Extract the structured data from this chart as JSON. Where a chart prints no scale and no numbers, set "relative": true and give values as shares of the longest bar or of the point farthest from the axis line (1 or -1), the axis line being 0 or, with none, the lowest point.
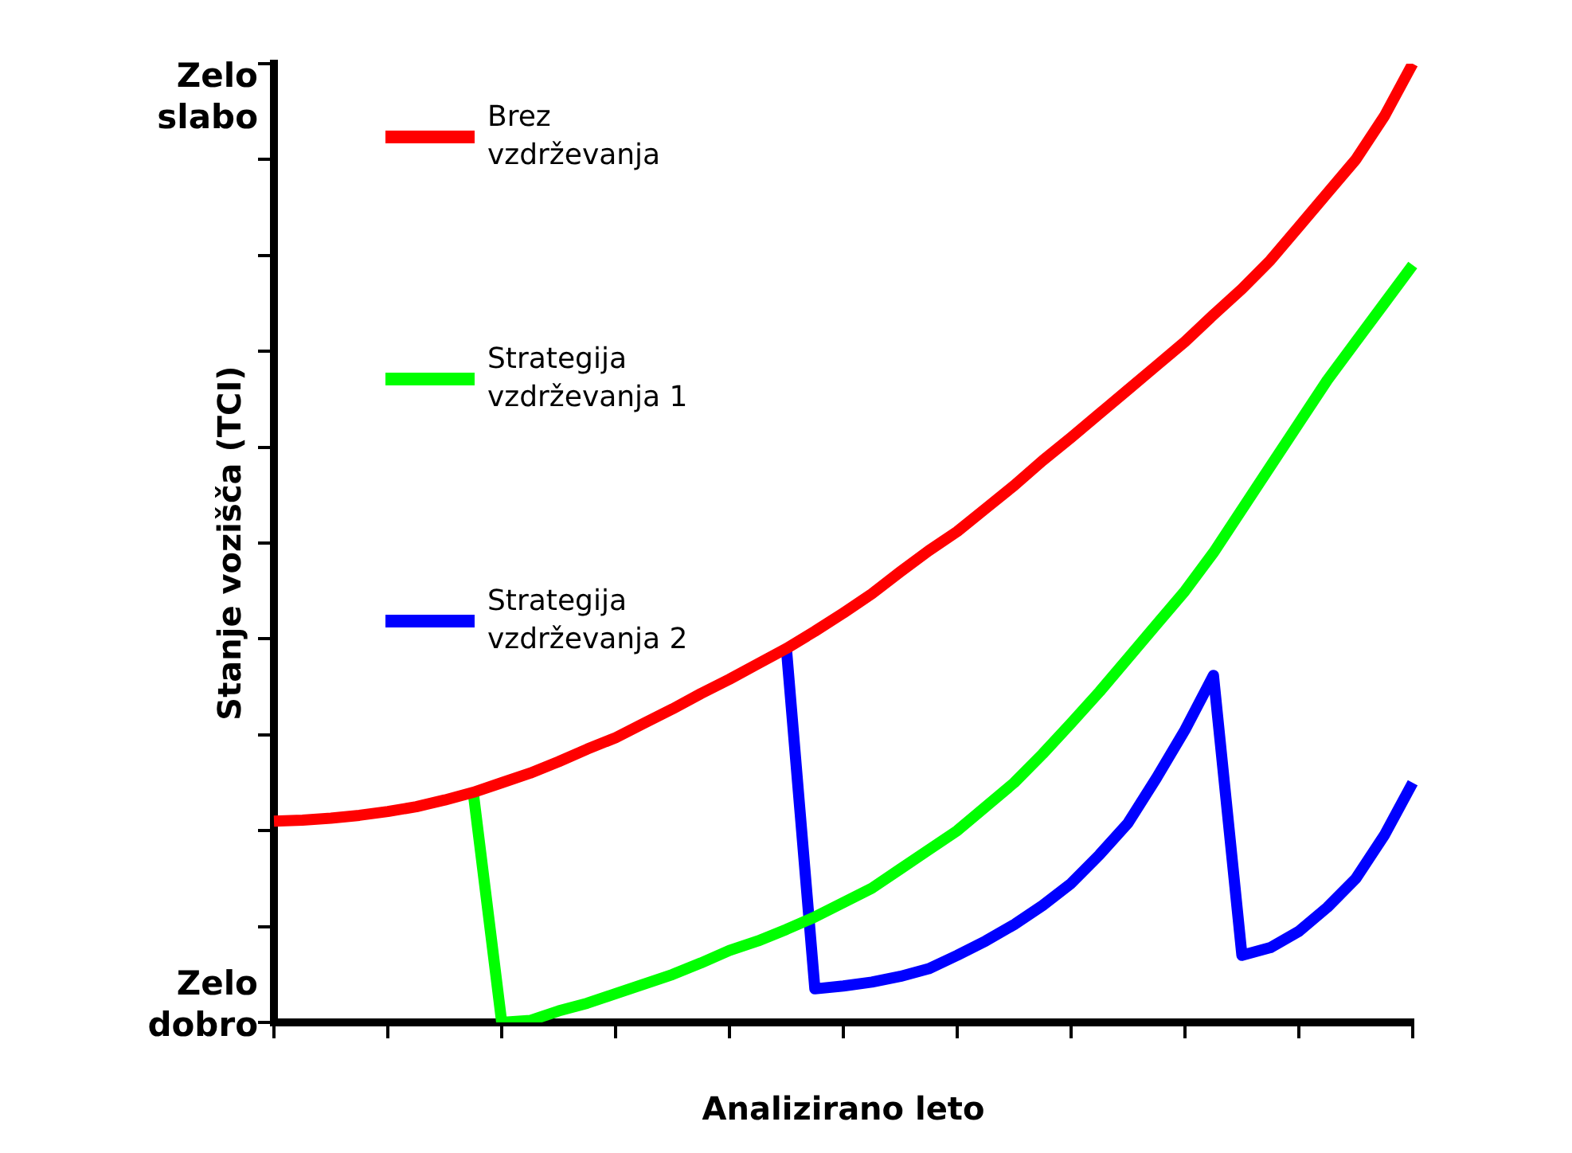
{
  "chart_data": {
    "type": "line",
    "xlabel": "Analizirano leto",
    "ylabel": "Stanje vozišča (TCI)",
    "relative": true,
    "annotations": [
      "Zelo slabo",
      "Zelo dobro"
    ],
    "categories": [
      null,
      null,
      null,
      null,
      null,
      null,
      null,
      null,
      null,
      null,
      null,
      null,
      null,
      null,
      null,
      null,
      null,
      null,
      null,
      null,
      null,
      null,
      null,
      null,
      null,
      null,
      null,
      null,
      null,
      null,
      null,
      null,
      null,
      null,
      null,
      null,
      null,
      null,
      null,
      null,
      null
    ],
    "grid": false,
    "legend": "top left",
    "marker": "none",
    "line_style": "solid",
    "series": [
      {
        "name": "Brez vzdrževanja",
        "color": "#ff0000",
        "values": [
          0.21,
          0.211,
          0.213,
          0.216,
          0.22,
          0.225,
          0.232,
          0.24,
          0.25,
          0.26,
          0.272,
          0.285,
          0.297,
          0.312,
          0.327,
          0.343,
          0.358,
          0.374,
          0.39,
          0.408,
          0.427,
          0.447,
          0.47,
          0.492,
          0.512,
          0.536,
          0.56,
          0.586,
          0.61,
          0.635,
          0.66,
          0.685,
          0.71,
          0.738,
          0.765,
          0.795,
          0.83,
          0.865,
          0.9,
          0.945,
          1
        ]
      },
      {
        "name": "Strategija vzdrževanja 1",
        "color": "#00ff00",
        "values": [
          null,
          null,
          null,
          null,
          null,
          null,
          null,
          0.24,
          0,
          0.002,
          0.012,
          0.02,
          0.03,
          0.04,
          0.05,
          0.062,
          0.075,
          0.085,
          0.097,
          0.11,
          0.125,
          0.14,
          0.16,
          0.18,
          0.2,
          0.225,
          0.25,
          0.28,
          0.312,
          0.345,
          0.38,
          0.415,
          0.45,
          0.49,
          0.535,
          0.58,
          0.625,
          0.67,
          0.71,
          0.75,
          0.79
        ]
      },
      {
        "name": "Strategija vzdrževanja 2",
        "color": "#0000ff",
        "values": [
          null,
          null,
          null,
          null,
          null,
          null,
          null,
          null,
          null,
          null,
          null,
          null,
          null,
          null,
          null,
          null,
          null,
          null,
          0.39,
          0.035,
          0.038,
          0.042,
          0.048,
          0.056,
          0.07,
          0.085,
          0.102,
          0.122,
          0.145,
          0.175,
          0.208,
          0.255,
          0.305,
          0.362,
          0.07,
          0.078,
          0.095,
          0.12,
          0.15,
          0.195,
          0.25
        ]
      }
    ]
  }
}
